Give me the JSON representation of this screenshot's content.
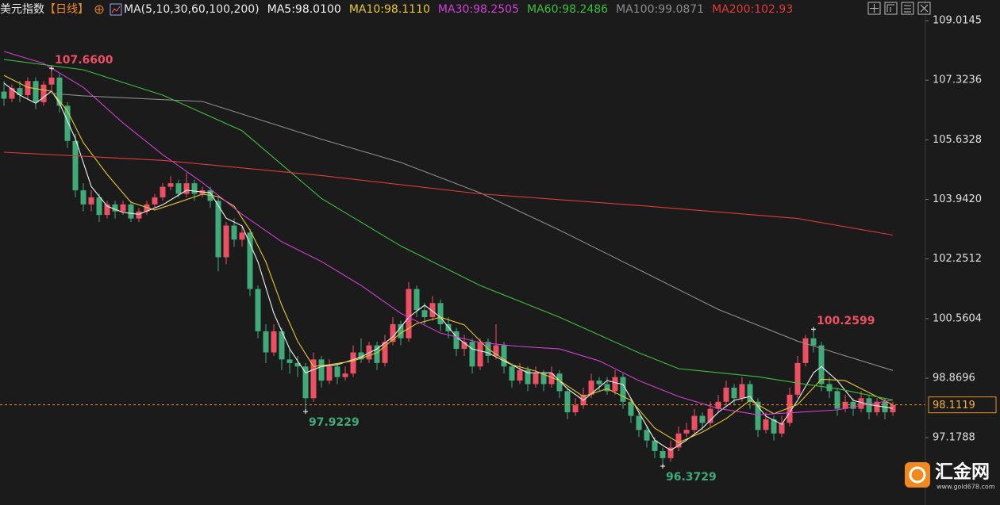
{
  "chart_data": {
    "type": "candlestick",
    "title": "美元指数",
    "period": "【日线】",
    "indicator": "MA(5,10,30,60,100,200)",
    "up_color": "#ef4f63",
    "down_color": "#3eab78",
    "ylim": [
      95.27,
      109.6
    ],
    "yticks": [
      109.0145,
      107.3236,
      105.6328,
      {
        "value": 103.942,
        "label": "103.9420"
      },
      102.2512,
      100.5604,
      98.8696,
      97.1788
    ],
    "ohlc": [
      [
        107.0,
        107.3,
        106.6,
        106.8
      ],
      [
        106.8,
        107.2,
        106.7,
        107.1
      ],
      [
        107.1,
        107.3,
        106.7,
        106.9
      ],
      [
        106.9,
        107.4,
        106.8,
        107.3
      ],
      [
        107.3,
        107.4,
        106.5,
        106.7
      ],
      [
        106.7,
        107.3,
        106.6,
        107.2
      ],
      [
        107.2,
        107.66,
        107.0,
        107.4
      ],
      [
        107.4,
        107.5,
        106.4,
        106.6
      ],
      [
        106.6,
        106.7,
        105.4,
        105.6
      ],
      [
        105.6,
        105.8,
        104.0,
        104.2
      ],
      [
        104.2,
        104.4,
        103.6,
        103.8
      ],
      [
        103.8,
        104.2,
        103.6,
        104.0
      ],
      [
        104.0,
        104.1,
        103.3,
        103.5
      ],
      [
        103.5,
        103.9,
        103.4,
        103.8
      ],
      [
        103.8,
        103.9,
        103.4,
        103.6
      ],
      [
        103.6,
        103.9,
        103.5,
        103.8
      ],
      [
        103.8,
        103.9,
        103.3,
        103.4
      ],
      [
        103.4,
        103.7,
        103.3,
        103.6
      ],
      [
        103.6,
        103.9,
        103.5,
        103.8
      ],
      [
        103.8,
        104.1,
        103.7,
        104.0
      ],
      [
        104.0,
        104.4,
        103.9,
        104.3
      ],
      [
        104.3,
        104.6,
        104.2,
        104.4
      ],
      [
        104.4,
        104.5,
        104.0,
        104.1
      ],
      [
        104.1,
        104.7,
        104.0,
        104.4
      ],
      [
        104.4,
        104.5,
        103.9,
        104.1
      ],
      [
        104.1,
        104.3,
        104.0,
        104.2
      ],
      [
        104.2,
        104.3,
        103.7,
        103.9
      ],
      [
        103.9,
        104.0,
        101.9,
        102.3
      ],
      [
        102.3,
        103.3,
        102.1,
        103.2
      ],
      [
        103.2,
        103.4,
        102.6,
        102.8
      ],
      [
        102.8,
        103.2,
        102.6,
        103.0
      ],
      [
        103.0,
        103.1,
        101.2,
        101.4
      ],
      [
        101.4,
        101.5,
        100.0,
        100.2
      ],
      [
        100.2,
        100.4,
        99.3,
        99.6
      ],
      [
        99.6,
        100.4,
        99.5,
        100.2
      ],
      [
        100.2,
        100.3,
        99.1,
        99.4
      ],
      [
        99.4,
        99.7,
        99.0,
        99.3
      ],
      [
        99.3,
        99.5,
        98.9,
        99.2
      ],
      [
        99.2,
        99.3,
        97.9229,
        98.3
      ],
      [
        98.3,
        99.6,
        98.2,
        99.4
      ],
      [
        99.4,
        99.5,
        98.6,
        98.8
      ],
      [
        98.8,
        99.4,
        98.7,
        99.2
      ],
      [
        99.2,
        99.3,
        98.7,
        98.9
      ],
      [
        98.9,
        99.2,
        98.8,
        99.0
      ],
      [
        99.0,
        99.8,
        98.9,
        99.6
      ],
      [
        99.6,
        100.0,
        99.3,
        99.4
      ],
      [
        99.4,
        99.9,
        99.3,
        99.8
      ],
      [
        99.8,
        99.9,
        99.1,
        99.3
      ],
      [
        99.3,
        100.1,
        99.2,
        99.9
      ],
      [
        99.9,
        100.6,
        99.8,
        100.4
      ],
      [
        100.4,
        100.5,
        99.8,
        100.0
      ],
      [
        100.0,
        101.6,
        99.9,
        101.4
      ],
      [
        101.4,
        101.5,
        100.6,
        100.8
      ],
      [
        100.8,
        101.0,
        100.4,
        100.6
      ],
      [
        100.6,
        101.2,
        100.5,
        101.0
      ],
      [
        101.0,
        101.1,
        100.2,
        100.4
      ],
      [
        100.4,
        100.6,
        100.0,
        100.2
      ],
      [
        100.2,
        100.3,
        99.5,
        99.7
      ],
      [
        99.7,
        100.1,
        99.5,
        99.9
      ],
      [
        99.9,
        100.0,
        99.0,
        99.2
      ],
      [
        99.2,
        100.0,
        99.1,
        99.9
      ],
      [
        99.9,
        100.0,
        99.3,
        99.5
      ],
      [
        99.5,
        100.4,
        99.4,
        99.8
      ],
      [
        99.8,
        99.9,
        99.0,
        99.2
      ],
      [
        99.2,
        99.3,
        98.6,
        98.8
      ],
      [
        98.8,
        99.3,
        98.7,
        99.1
      ],
      [
        99.1,
        99.2,
        98.5,
        98.7
      ],
      [
        98.7,
        99.2,
        98.6,
        99.0
      ],
      [
        99.0,
        99.1,
        98.5,
        98.7
      ],
      [
        98.7,
        99.2,
        98.6,
        99.0
      ],
      [
        99.0,
        99.1,
        98.3,
        98.5
      ],
      [
        98.5,
        98.6,
        97.7,
        97.9
      ],
      [
        97.9,
        98.3,
        97.8,
        98.1
      ],
      [
        98.1,
        98.6,
        98.0,
        98.4
      ],
      [
        98.4,
        99.0,
        98.3,
        98.8
      ],
      [
        98.8,
        98.9,
        98.5,
        98.7
      ],
      [
        98.7,
        98.9,
        98.4,
        98.5
      ],
      [
        98.5,
        99.1,
        98.4,
        98.9
      ],
      [
        98.9,
        99.0,
        98.0,
        98.2
      ],
      [
        98.2,
        98.3,
        97.6,
        97.8
      ],
      [
        97.8,
        97.9,
        97.2,
        97.4
      ],
      [
        97.4,
        97.5,
        96.9,
        97.1
      ],
      [
        97.1,
        97.2,
        96.6,
        96.8
      ],
      [
        96.8,
        96.9,
        96.3729,
        96.6
      ],
      [
        96.6,
        97.1,
        96.5,
        96.9
      ],
      [
        96.9,
        97.5,
        96.8,
        97.3
      ],
      [
        97.3,
        97.6,
        97.2,
        97.4
      ],
      [
        97.4,
        98.0,
        97.3,
        97.8
      ],
      [
        97.8,
        97.9,
        97.4,
        97.6
      ],
      [
        97.6,
        98.2,
        97.5,
        98.0
      ],
      [
        98.0,
        98.4,
        97.9,
        98.2
      ],
      [
        98.2,
        98.8,
        98.1,
        98.6
      ],
      [
        98.6,
        98.7,
        98.1,
        98.3
      ],
      [
        98.3,
        98.9,
        98.2,
        98.7
      ],
      [
        98.7,
        98.8,
        98.0,
        98.2
      ],
      [
        98.2,
        98.3,
        97.2,
        97.4
      ],
      [
        97.4,
        97.9,
        97.3,
        97.7
      ],
      [
        97.7,
        97.8,
        97.1,
        97.3
      ],
      [
        97.3,
        97.8,
        97.2,
        97.6
      ],
      [
        97.6,
        98.6,
        97.5,
        98.4
      ],
      [
        98.4,
        99.5,
        98.3,
        99.3
      ],
      [
        99.3,
        100.1,
        99.2,
        100.0
      ],
      [
        100.0,
        100.2599,
        99.6,
        99.8
      ],
      [
        99.8,
        99.9,
        98.5,
        98.7
      ],
      [
        98.7,
        98.9,
        98.3,
        98.5
      ],
      [
        98.5,
        98.6,
        97.8,
        98.0
      ],
      [
        98.0,
        98.4,
        97.9,
        98.2
      ],
      [
        98.2,
        98.3,
        97.8,
        98.0
      ],
      [
        98.0,
        98.5,
        97.9,
        98.3
      ],
      [
        98.3,
        98.4,
        97.7,
        97.9
      ],
      [
        97.9,
        98.3,
        97.8,
        98.2
      ],
      [
        98.2,
        98.3,
        97.7,
        97.9
      ],
      [
        97.9,
        98.2,
        97.8,
        98.1119
      ]
    ],
    "ma_series": [
      {
        "name": "MA5:98.0100",
        "color": "#f2f2f2",
        "x": [
          0,
          2,
          4,
          6,
          7,
          9,
          11,
          13,
          15,
          17,
          20,
          23,
          26,
          28,
          30,
          32,
          34,
          36,
          38,
          40,
          42,
          45,
          47,
          49,
          51,
          53,
          55,
          57,
          59,
          61,
          63,
          66,
          69,
          71,
          73,
          76,
          78,
          80,
          82,
          84,
          86,
          88,
          90,
          92,
          94,
          96,
          98,
          100,
          102,
          103,
          105,
          107,
          109,
          111,
          112
        ],
        "values": [
          107.24,
          106.9,
          106.67,
          107.01,
          106.67,
          105.66,
          104.31,
          103.75,
          103.57,
          103.52,
          103.79,
          104.2,
          104.13,
          103.41,
          103.19,
          102.17,
          100.71,
          99.7,
          99.02,
          99.2,
          99.25,
          99.47,
          99.7,
          100.04,
          100.6,
          100.94,
          100.6,
          100.04,
          99.7,
          99.59,
          99.36,
          99.02,
          99.02,
          98.57,
          98.24,
          98.8,
          98.69,
          97.9,
          97.11,
          96.82,
          97.11,
          97.45,
          97.9,
          98.24,
          98.35,
          97.79,
          97.56,
          98.24,
          99.02,
          99.2,
          98.8,
          98.24,
          98.12,
          98.05,
          98.01
        ]
      },
      {
        "name": "MA10:98.1110",
        "color": "#e6c82e",
        "x": [
          0,
          3,
          6,
          8,
          10,
          13,
          16,
          19,
          22,
          25,
          27,
          29,
          31,
          33,
          35,
          37,
          39,
          41,
          44,
          47,
          50,
          52,
          55,
          58,
          61,
          64,
          67,
          70,
          73,
          76,
          79,
          82,
          85,
          88,
          91,
          94,
          97,
          100,
          103,
          106,
          109,
          112
        ],
        "values": [
          107.46,
          107.12,
          107.01,
          106.45,
          105.55,
          104.65,
          103.86,
          103.64,
          103.86,
          104.09,
          104.02,
          103.75,
          103.07,
          102.17,
          100.94,
          99.92,
          99.2,
          99.25,
          99.36,
          99.59,
          100.15,
          100.42,
          100.6,
          100.38,
          99.7,
          99.25,
          99.07,
          98.8,
          98.35,
          98.57,
          98.24,
          97.45,
          97.04,
          97.34,
          97.72,
          98.24,
          97.86,
          98.12,
          98.84,
          98.8,
          98.46,
          98.111
        ]
      },
      {
        "name": "MA30:98.2505",
        "color": "#d23fd6",
        "x": [
          0,
          5,
          10,
          15,
          20,
          25,
          30,
          35,
          40,
          45,
          50,
          55,
          60,
          65,
          70,
          75,
          80,
          85,
          90,
          95,
          100,
          105,
          112
        ],
        "values": [
          108.14,
          107.8,
          107.12,
          106.11,
          105.21,
          104.42,
          103.52,
          102.74,
          102.18,
          101.5,
          100.71,
          100.15,
          99.88,
          99.77,
          99.7,
          99.36,
          98.8,
          98.35,
          98.01,
          97.83,
          97.9,
          97.97,
          98.2505
        ]
      },
      {
        "name": "MA60:98.2486",
        "color": "#3dbf3d",
        "x": [
          0,
          10,
          20,
          30,
          40,
          50,
          60,
          70,
          80,
          85,
          95,
          100,
          105,
          112
        ],
        "values": [
          107.91,
          107.62,
          106.9,
          105.89,
          103.97,
          102.62,
          101.5,
          100.6,
          99.59,
          99.14,
          98.91,
          98.73,
          98.57,
          98.2486
        ]
      },
      {
        "name": "MA100:99.0871",
        "color": "#8c8c8c",
        "x": [
          6,
          10,
          25,
          40,
          50,
          60,
          70,
          80,
          90,
          100,
          112
        ],
        "values": [
          106.95,
          106.88,
          106.72,
          105.65,
          104.99,
          104.13,
          103.07,
          101.95,
          100.82,
          99.92,
          99.0871
        ]
      },
      {
        "name": "MA200:102.93",
        "color": "#e03a3a",
        "x": [
          0,
          20,
          40,
          60,
          80,
          100,
          112
        ],
        "values": [
          105.28,
          105.05,
          104.62,
          104.1,
          103.77,
          103.4,
          102.93
        ]
      }
    ],
    "annotations": [
      {
        "index": 6,
        "value": 107.66,
        "label": "107.6600"
      },
      {
        "index": 102,
        "value": 100.2599,
        "label": "100.2599"
      },
      {
        "index": 38,
        "value": 97.9229,
        "label": "97.9229"
      },
      {
        "index": 83,
        "value": 96.3729,
        "label": "96.3729"
      }
    ],
    "last_price": {
      "value": 98.1119,
      "label": "98.1119"
    }
  },
  "watermark": {
    "name": "汇金网",
    "url": "www.gold678.com"
  }
}
